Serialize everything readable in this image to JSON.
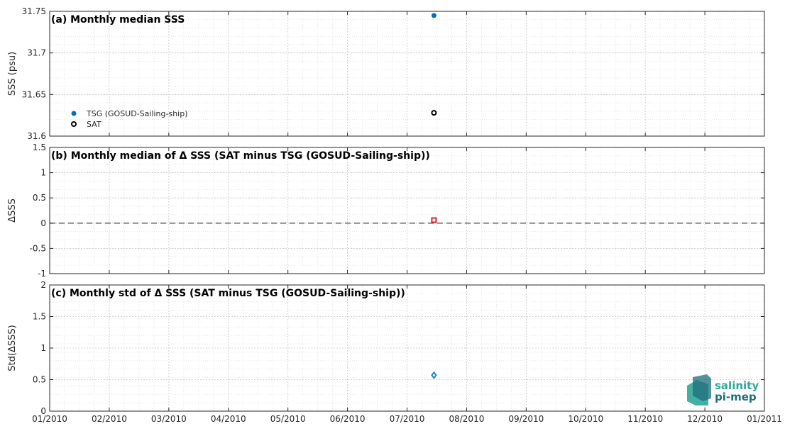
{
  "colors": {
    "tsg": "#0072bd",
    "sat": "#000000",
    "delta": "#e0202a",
    "std": "#1f8ac9",
    "zero_line": "#555555",
    "logo_top": "#2fa898",
    "logo_bottom": "#1e6e7a"
  },
  "x_axis": {
    "tick_labels": [
      "01/2010",
      "02/2010",
      "03/2010",
      "04/2010",
      "05/2010",
      "06/2010",
      "07/2010",
      "08/2010",
      "09/2010",
      "10/2010",
      "11/2010",
      "12/2010",
      "01/2011"
    ],
    "range_months": [
      0,
      12
    ]
  },
  "chart_data": [
    {
      "type": "scatter",
      "title": "(a) Monthly median SSS",
      "ylabel": "SSS (psu)",
      "ylim": [
        31.6,
        31.75
      ],
      "yticks": [
        "31.6",
        "31.65",
        "31.7",
        "31.75"
      ],
      "ytick_values": [
        31.6,
        31.65,
        31.7,
        31.75
      ],
      "grid": true,
      "legend_placement": "lower-left",
      "series": [
        {
          "name": "TSG (GOSUD-Sailing-ship)",
          "marker": "filled-circle",
          "color": "#0072bd",
          "x": [
            "2010-07-15"
          ],
          "y": [
            31.745
          ]
        },
        {
          "name": "SAT",
          "marker": "open-circle",
          "color": "#000000",
          "x": [
            "2010-07-15"
          ],
          "y": [
            31.628
          ]
        }
      ]
    },
    {
      "type": "scatter",
      "title": "(b) Monthly median of Δ SSS (SAT minus TSG (GOSUD-Sailing-ship))",
      "ylabel": "ΔSSS",
      "ylim": [
        -1,
        1.5
      ],
      "yticks": [
        "-1",
        "-0.5",
        "0",
        "0.5",
        "1",
        "1.5"
      ],
      "ytick_values": [
        -1,
        -0.5,
        0,
        0.5,
        1,
        1.5
      ],
      "grid": true,
      "reference_line": 0,
      "series": [
        {
          "marker": "open-square",
          "color": "#e0202a",
          "x": [
            "2010-07-15"
          ],
          "y": [
            0.06
          ]
        }
      ]
    },
    {
      "type": "scatter",
      "title": "(c) Monthly std of Δ SSS (SAT minus TSG (GOSUD-Sailing-ship))",
      "ylabel": "Std(ΔSSS)",
      "ylim": [
        0,
        2
      ],
      "yticks": [
        "0",
        "0.5",
        "1",
        "1.5",
        "2"
      ],
      "ytick_values": [
        0,
        0.5,
        1,
        1.5,
        2
      ],
      "grid": true,
      "series": [
        {
          "marker": "open-diamond",
          "color": "#1f8ac9",
          "x": [
            "2010-07-15"
          ],
          "y": [
            0.57
          ]
        }
      ]
    }
  ],
  "logo": {
    "line1": "salinity",
    "line2": "pi-mep"
  }
}
